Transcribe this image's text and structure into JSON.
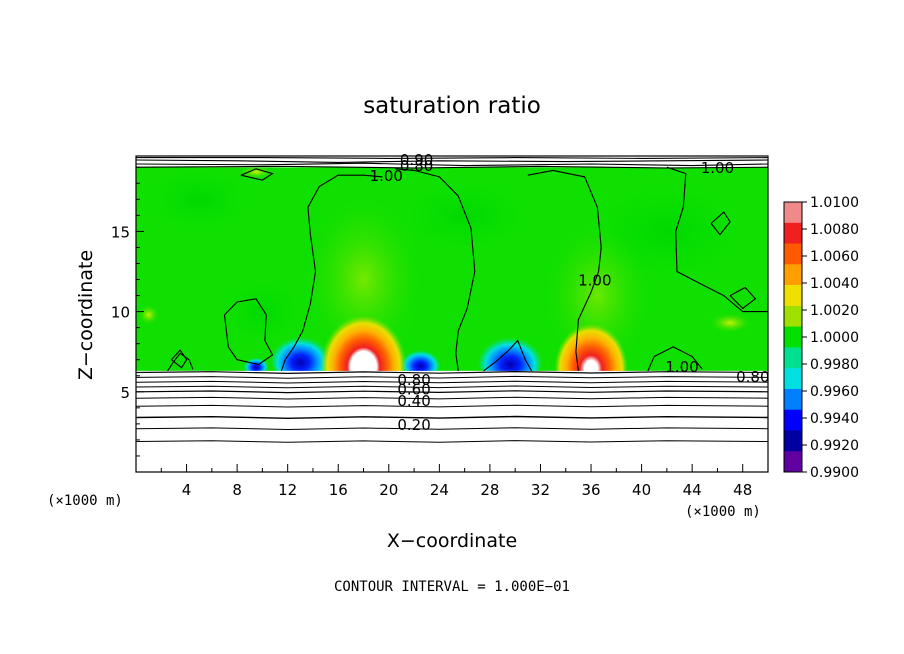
{
  "chart_data": {
    "type": "heatmap",
    "title": "saturation ratio",
    "xlabel": "X−coordinate",
    "ylabel": "Z−coordinate",
    "x_unit_left": "(×1000 m)",
    "x_unit_right": "(×1000 m)",
    "xlim": [
      0,
      50
    ],
    "ylim": [
      0,
      19.7
    ],
    "x_ticks": [
      4,
      8,
      12,
      16,
      20,
      24,
      28,
      32,
      36,
      40,
      44,
      48
    ],
    "x_tick_labels": [
      "4",
      "8",
      "12",
      "16",
      "20",
      "24",
      "28",
      "32",
      "36",
      "40",
      "44",
      "48"
    ],
    "y_ticks": [
      5,
      10,
      15
    ],
    "y_tick_labels": [
      "5",
      "10",
      "15"
    ],
    "footer": "CONTOUR INTERVAL = 1.000E−01",
    "colorbar": {
      "min": 0.99,
      "max": 1.01,
      "labels": [
        "1.0100",
        "1.0080",
        "1.0060",
        "1.0040",
        "1.0020",
        "1.0000",
        "0.9980",
        "0.9960",
        "0.9940",
        "0.9920",
        "0.9900"
      ],
      "colors": [
        "#f08a8a",
        "#f02020",
        "#ff5a00",
        "#ffa000",
        "#f0e000",
        "#a0e000",
        "#00e000",
        "#00e090",
        "#00e0e0",
        "#0080ff",
        "#0000ff",
        "#0000a0",
        "#6000a0"
      ]
    },
    "contour_labels": [
      {
        "text": "0.90",
        "x": 22.2,
        "z": 19.5
      },
      {
        "text": "0.80",
        "x": 22.2,
        "z": 19.15
      },
      {
        "text": "1.00",
        "x": 19.8,
        "z": 18.5
      },
      {
        "text": "1.00",
        "x": 46.0,
        "z": 19.0
      },
      {
        "text": "1.00",
        "x": 43.2,
        "z": 6.6
      },
      {
        "text": "1.00",
        "x": 36.3,
        "z": 12.0
      },
      {
        "text": "0.80",
        "x": 22.0,
        "z": 5.8
      },
      {
        "text": "0.60",
        "x": 22.0,
        "z": 5.2
      },
      {
        "text": "0.80",
        "x": 48.8,
        "z": 6.0
      },
      {
        "text": "0.40",
        "x": 22.0,
        "z": 4.5
      },
      {
        "text": "0.20",
        "x": 22.0,
        "z": 3.0
      }
    ],
    "features": [
      {
        "type": "white_core",
        "x": 18.0,
        "z": 7.2
      },
      {
        "type": "red_max",
        "x": 18.0,
        "z": 8.5
      },
      {
        "type": "red_max",
        "x": 36.0,
        "z": 8.0
      },
      {
        "type": "blue_min",
        "x": 13.0,
        "z": 7.2
      },
      {
        "type": "blue_min",
        "x": 22.5,
        "z": 6.8
      },
      {
        "type": "blue_min",
        "x": 29.5,
        "z": 7.0
      },
      {
        "type": "green_background",
        "z_from": 6.3,
        "z_to": 19.0
      }
    ]
  }
}
